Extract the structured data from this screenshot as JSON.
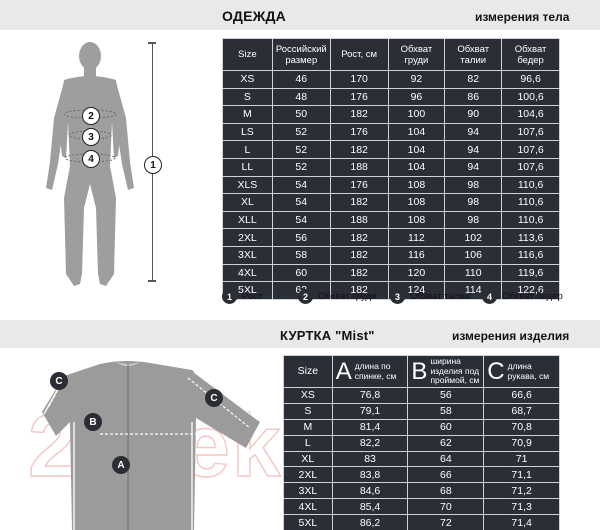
{
  "clothing": {
    "title": "ОДЕЖДА",
    "subtitle": "измерения тела",
    "headers": [
      "Size",
      "Российский размер",
      "Рост, см",
      "Обхват груди",
      "Обхват талии",
      "Обхват бедер"
    ],
    "rows": [
      [
        "XS",
        "46",
        "170",
        "92",
        "82",
        "96,6"
      ],
      [
        "S",
        "48",
        "176",
        "96",
        "86",
        "100,6"
      ],
      [
        "M",
        "50",
        "182",
        "100",
        "90",
        "104,6"
      ],
      [
        "LS",
        "52",
        "176",
        "104",
        "94",
        "107,6"
      ],
      [
        "L",
        "52",
        "182",
        "104",
        "94",
        "107,6"
      ],
      [
        "LL",
        "52",
        "188",
        "104",
        "94",
        "107,6"
      ],
      [
        "XLS",
        "54",
        "176",
        "108",
        "98",
        "110,6"
      ],
      [
        "XL",
        "54",
        "182",
        "108",
        "98",
        "110,6"
      ],
      [
        "XLL",
        "54",
        "188",
        "108",
        "98",
        "110,6"
      ],
      [
        "2XL",
        "56",
        "182",
        "112",
        "102",
        "113,6"
      ],
      [
        "3XL",
        "58",
        "182",
        "116",
        "106",
        "116,6"
      ],
      [
        "4XL",
        "60",
        "182",
        "120",
        "110",
        "119,6"
      ],
      [
        "5XL",
        "62",
        "182",
        "124",
        "114",
        "122,6"
      ]
    ],
    "legend": [
      {
        "num": "1",
        "label": "Рост"
      },
      {
        "num": "2",
        "label": "Обхват груди"
      },
      {
        "num": "3",
        "label": "Обхват талии"
      },
      {
        "num": "4",
        "label": "Обхват бедер"
      }
    ],
    "figure_markers": [
      "1",
      "2",
      "3",
      "4"
    ]
  },
  "jacket": {
    "title": "КУРТКА \"Mist\"",
    "subtitle": "измерения изделия",
    "header_size": "Size",
    "headers": [
      {
        "letter": "A",
        "text": "длина по спинке, см"
      },
      {
        "letter": "B",
        "text": "ширина изделия под проймой, см"
      },
      {
        "letter": "C",
        "text": "длина рукава, см"
      }
    ],
    "rows": [
      [
        "XS",
        "76,8",
        "56",
        "66,6"
      ],
      [
        "S",
        "79,1",
        "58",
        "68,7"
      ],
      [
        "M",
        "81,4",
        "60",
        "70,8"
      ],
      [
        "L",
        "82,2",
        "62",
        "70,9"
      ],
      [
        "XL",
        "83",
        "64",
        "71"
      ],
      [
        "2XL",
        "83,8",
        "66",
        "71,1"
      ],
      [
        "3XL",
        "84,6",
        "68",
        "71,2"
      ],
      [
        "4XL",
        "85,4",
        "70",
        "71,3"
      ],
      [
        "5XL",
        "86,2",
        "72",
        "71,4"
      ]
    ],
    "figure_markers": [
      "C",
      "C",
      "B",
      "A"
    ]
  },
  "watermark": "21vek.by",
  "colors": {
    "table_bg": "#2a2e37",
    "band_bg": "#e9e9ea",
    "figure": "#9b9b9b"
  }
}
